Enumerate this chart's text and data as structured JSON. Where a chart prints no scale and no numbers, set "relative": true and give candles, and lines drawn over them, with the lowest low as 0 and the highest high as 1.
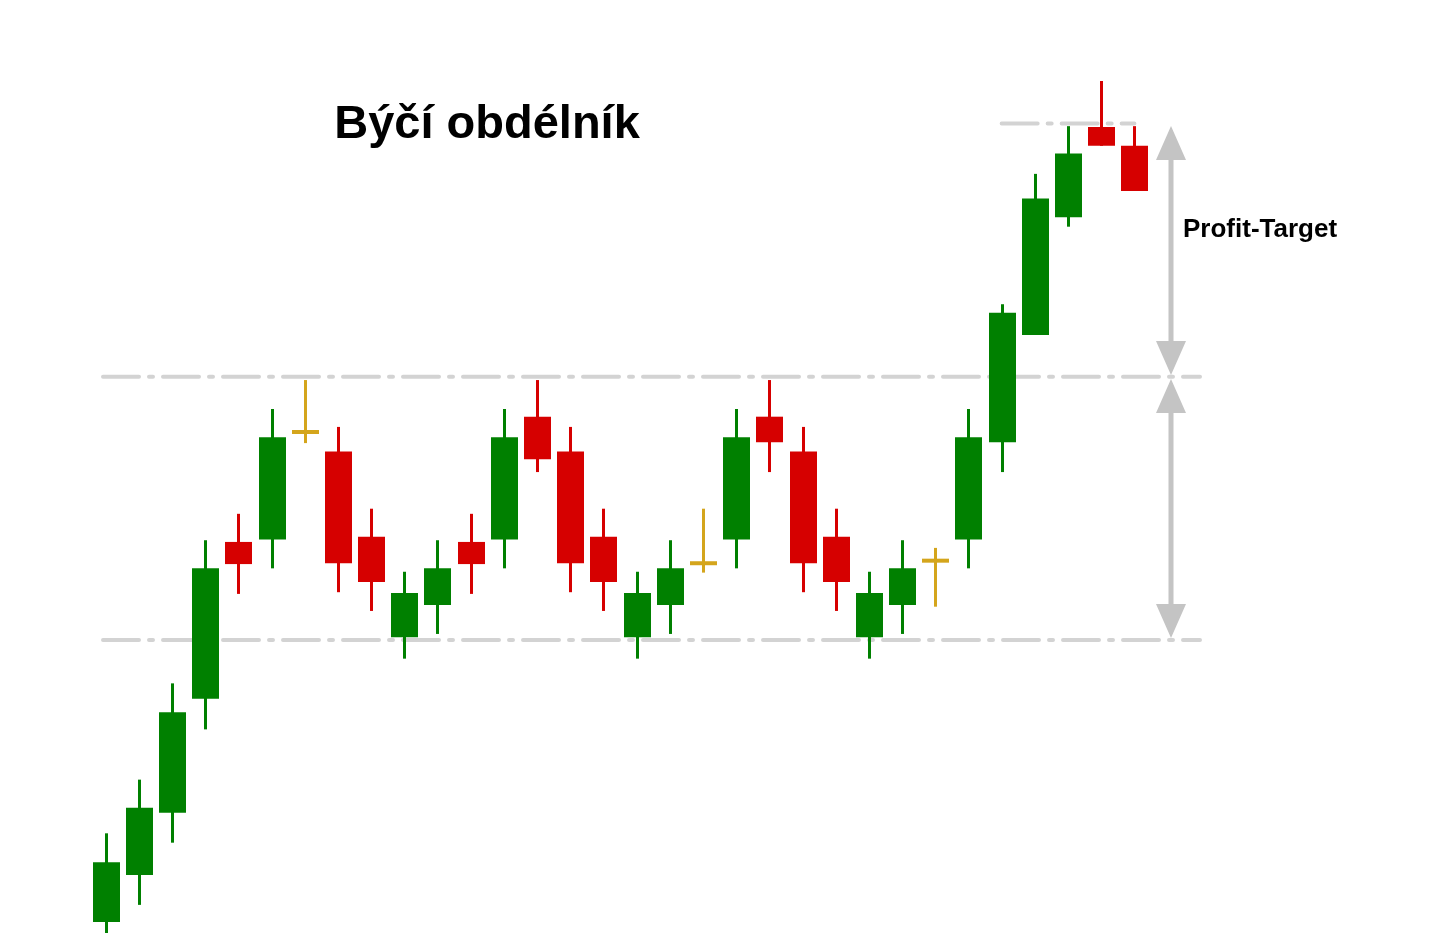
{
  "chart_data": {
    "type": "candlestick",
    "title": "Býčí obdélník",
    "relative": true,
    "categories": [
      null,
      null,
      null,
      null,
      null,
      null,
      null,
      null,
      null,
      null,
      null,
      null,
      null,
      null,
      null,
      null,
      null,
      null,
      null,
      null,
      null,
      null,
      null,
      null,
      null,
      null,
      null,
      null,
      null,
      null,
      null,
      null
    ],
    "ohlc": [
      [
        0.013,
        0.117,
        0,
        0.083
      ],
      [
        0.068,
        0.18,
        0.033,
        0.147
      ],
      [
        0.141,
        0.293,
        0.106,
        0.259
      ],
      [
        0.275,
        0.461,
        0.239,
        0.428
      ],
      [
        0.459,
        0.492,
        0.398,
        0.433
      ],
      [
        0.462,
        0.615,
        0.428,
        0.582
      ],
      [
        0.588,
        0.649,
        0.575,
        0.588
      ],
      [
        0.565,
        0.594,
        0.4,
        0.434
      ],
      [
        0.465,
        0.498,
        0.378,
        0.412
      ],
      [
        0.347,
        0.424,
        0.322,
        0.399
      ],
      [
        0.385,
        0.461,
        0.351,
        0.428
      ],
      [
        0.459,
        0.492,
        0.398,
        0.433
      ],
      [
        0.462,
        0.615,
        0.428,
        0.582
      ],
      [
        0.606,
        0.649,
        0.541,
        0.556
      ],
      [
        0.565,
        0.594,
        0.4,
        0.434
      ],
      [
        0.465,
        0.498,
        0.378,
        0.412
      ],
      [
        0.347,
        0.424,
        0.322,
        0.399
      ],
      [
        0.385,
        0.461,
        0.351,
        0.428
      ],
      [
        0.434,
        0.498,
        0.423,
        0.434
      ],
      [
        0.462,
        0.615,
        0.428,
        0.582
      ],
      [
        0.606,
        0.649,
        0.541,
        0.576
      ],
      [
        0.565,
        0.594,
        0.4,
        0.434
      ],
      [
        0.465,
        0.498,
        0.378,
        0.412
      ],
      [
        0.347,
        0.424,
        0.322,
        0.399
      ],
      [
        0.385,
        0.461,
        0.351,
        0.428
      ],
      [
        0.437,
        0.452,
        0.383,
        0.437
      ],
      [
        0.462,
        0.615,
        0.428,
        0.582
      ],
      [
        0.576,
        0.738,
        0.541,
        0.728
      ],
      [
        0.702,
        0.891,
        0.702,
        0.862
      ],
      [
        0.84,
        0.947,
        0.829,
        0.915
      ],
      [
        0.946,
        1,
        0.924,
        0.924
      ],
      [
        0.924,
        0.947,
        0.871,
        0.871
      ]
    ],
    "colors": [
      "#008000",
      "#008000",
      "#008000",
      "#008000",
      "#d60000",
      "#008000",
      "#d4a51c",
      "#d60000",
      "#d60000",
      "#008000",
      "#008000",
      "#d60000",
      "#008000",
      "#d60000",
      "#d60000",
      "#d60000",
      "#008000",
      "#008000",
      "#d4a51c",
      "#008000",
      "#d60000",
      "#d60000",
      "#d60000",
      "#008000",
      "#008000",
      "#d4a51c",
      "#008000",
      "#008000",
      "#008000",
      "#008000",
      "#d60000",
      "#d60000"
    ],
    "series": [
      {
        "type": "line",
        "color": "#d3d3d3",
        "line_style": "dashed",
        "values": [
          null,
          null,
          null,
          null,
          null,
          null,
          null,
          null,
          null,
          null,
          null,
          null,
          null,
          null,
          null,
          null,
          null,
          null,
          null,
          null,
          null,
          null,
          null,
          null,
          null,
          null,
          null,
          0.95,
          0.95,
          0.95,
          0.95,
          0.95
        ]
      }
    ],
    "ref_lines": [
      {
        "axis": "y",
        "value": 0.653,
        "color": "#d3d3d3",
        "line_style": "dashed"
      },
      {
        "axis": "y",
        "value": 0.344,
        "color": "#d3d3d3",
        "line_style": "dashed"
      }
    ],
    "annotations": [
      "Profit-Target"
    ]
  }
}
